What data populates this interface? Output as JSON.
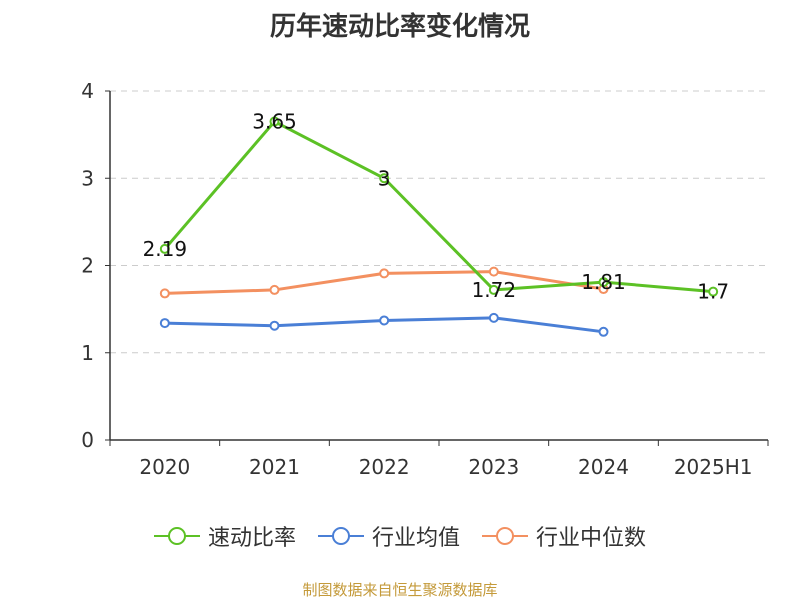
{
  "chart_data": {
    "type": "line",
    "title": "历年速动比率变化情况",
    "categories": [
      "2020",
      "2021",
      "2022",
      "2023",
      "2024",
      "2025H1"
    ],
    "yticks": [
      "0",
      "1",
      "2",
      "3",
      "4"
    ],
    "ylim": [
      0,
      4
    ],
    "grid": true,
    "legend_position": "bottom",
    "series": [
      {
        "name": "速动比率",
        "color": "#5cc125",
        "values": [
          2.19,
          3.65,
          3.0,
          1.72,
          1.81,
          1.7
        ],
        "labels": [
          "2.19",
          "3.65",
          "3",
          "1.72",
          "1.81",
          "1.7"
        ]
      },
      {
        "name": "行业均值",
        "color": "#4a7fd6",
        "values": [
          1.34,
          1.31,
          1.37,
          1.4,
          1.24,
          null
        ]
      },
      {
        "name": "行业中位数",
        "color": "#f39060",
        "values": [
          1.68,
          1.72,
          1.91,
          1.93,
          1.73,
          null
        ]
      }
    ]
  },
  "source": "制图数据来自恒生聚源数据库"
}
